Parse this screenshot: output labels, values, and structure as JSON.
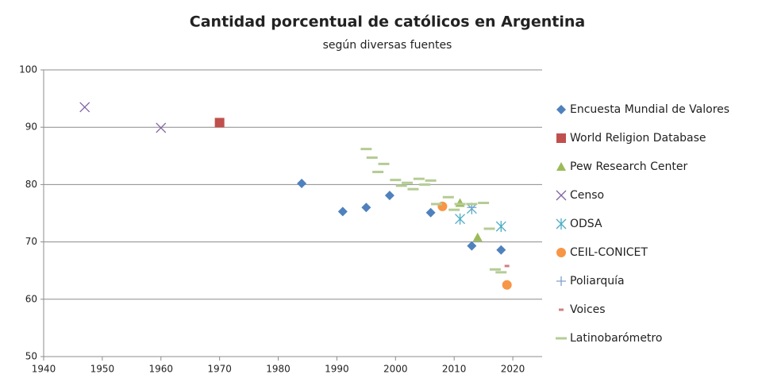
{
  "chart_data": {
    "type": "scatter",
    "title": "Cantidad porcentual de católicos en Argentina",
    "subtitle": "según diversas fuentes",
    "xlim": [
      1940,
      2025
    ],
    "xticks": [
      1940,
      1950,
      1960,
      1970,
      1980,
      1990,
      2000,
      2010,
      2020
    ],
    "ylim": [
      50,
      100
    ],
    "yticks": [
      50,
      60,
      70,
      80,
      90,
      100
    ],
    "grid": true,
    "legend": "right",
    "series": [
      {
        "name": "Encuesta Mundial de Valores",
        "color": "#4f81bd",
        "marker": "diamond",
        "x": [
          1984,
          1991,
          1995,
          1999,
          2006,
          2013,
          2018
        ],
        "values": [
          80.2,
          75.3,
          76,
          78.1,
          75.1,
          69.3,
          68.6
        ]
      },
      {
        "name": "World Religion Database",
        "color": "#c0504d",
        "marker": "square",
        "x": [
          1970
        ],
        "values": [
          90.8
        ]
      },
      {
        "name": "Pew Research Center",
        "color": "#9bbb59",
        "marker": "triangle",
        "x": [
          2011,
          2014
        ],
        "values": [
          76.8,
          70.8
        ]
      },
      {
        "name": "Censo",
        "color": "#8064a2",
        "marker": "x",
        "x": [
          1947,
          1960
        ],
        "values": [
          93.5,
          89.9
        ]
      },
      {
        "name": "ODSA",
        "color": "#4bacc6",
        "marker": "star",
        "x": [
          2011,
          2013,
          2018
        ],
        "values": [
          74,
          75.8,
          72.7
        ]
      },
      {
        "name": "CEIL-CONICET",
        "color": "#f79646",
        "marker": "circle",
        "x": [
          2008,
          2019
        ],
        "values": [
          76.2,
          62.5
        ]
      },
      {
        "name": "Poliarquía",
        "color": "#7f9fcf",
        "marker": "plus",
        "x": [
          2013
        ],
        "values": [
          76
        ]
      },
      {
        "name": "Voices",
        "color": "#d08080",
        "marker": "dash",
        "x": [
          2019
        ],
        "values": [
          65.8
        ]
      },
      {
        "name": "Latinobarómetro",
        "color": "#b5cc95",
        "marker": "longdash",
        "x": [
          1995,
          1996,
          1997,
          1998,
          2000,
          2001,
          2002,
          2003,
          2004,
          2005,
          2006,
          2007,
          2009,
          2010,
          2011,
          2013,
          2015,
          2016,
          2017,
          2018
        ],
        "values": [
          86.2,
          84.7,
          82.2,
          83.6,
          80.8,
          79.8,
          80.3,
          79.2,
          81,
          80,
          80.7,
          76.6,
          77.8,
          75.6,
          76.6,
          76.6,
          76.8,
          72.3,
          65.2,
          64.7
        ]
      }
    ]
  }
}
